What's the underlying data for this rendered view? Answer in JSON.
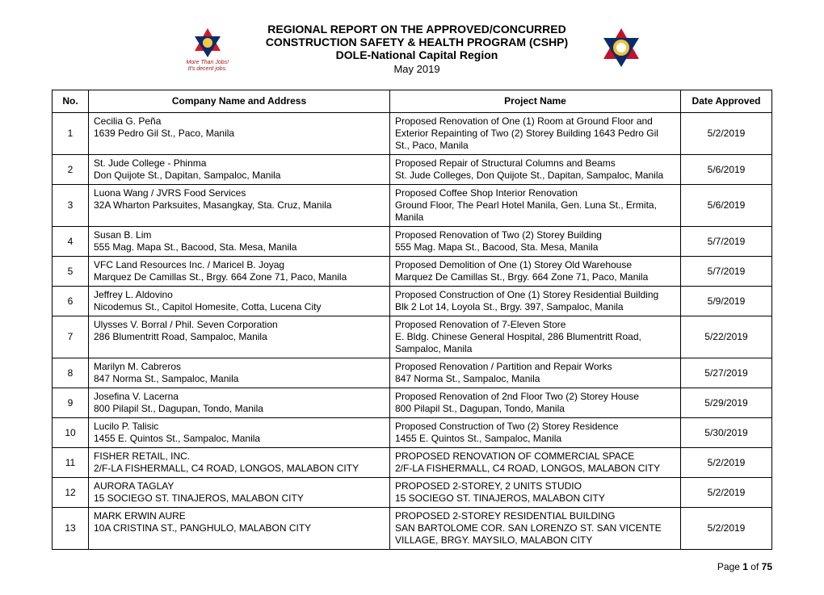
{
  "header": {
    "title1": "REGIONAL REPORT ON THE APPROVED/CONCURRED",
    "title2": "CONSTRUCTION SAFETY & HEALTH PROGRAM (CSHP)",
    "title3": "DOLE-National Capital Region",
    "date": "May 2019",
    "left_logo": {
      "top_color": "#d11a2a",
      "bottom_color": "#0b2c6b",
      "accent": "#f6c945",
      "script1": "More Than Jobs!",
      "script2": "It's decent jobs."
    },
    "right_logo": {
      "red": "#c1132a",
      "blue": "#0b2c6b",
      "yellow": "#f3c233",
      "white": "#ffffff"
    }
  },
  "table": {
    "headers": {
      "no": "No.",
      "company": "Company Name and Address",
      "project": "Project Name",
      "date": "Date Approved"
    },
    "rows": [
      {
        "no": "1",
        "company": "Cecilia G. Peña",
        "address": "1639 Pedro Gil St., Paco, Manila",
        "project": "Proposed Renovation of One (1) Room at Ground Floor and Exterior Repainting of Two (2) Storey Building 1643 Pedro Gil St., Paco, Manila",
        "date": "5/2/2019"
      },
      {
        "no": "2",
        "company": "St. Jude College - Phinma",
        "address": "Don Quijote St., Dapitan, Sampaloc, Manila",
        "project": "Proposed Repair of Structural Columns and Beams\nSt. Jude Colleges, Don Quijote St., Dapitan, Sampaloc, Manila",
        "date": "5/6/2019"
      },
      {
        "no": "3",
        "company": "Luona Wang / JVRS Food Services",
        "address": "32A Wharton Parksuites, Masangkay, Sta. Cruz, Manila",
        "project": "Proposed Coffee Shop Interior Renovation\nGround Floor, The Pearl Hotel Manila, Gen. Luna St., Ermita, Manila",
        "date": "5/6/2019"
      },
      {
        "no": "4",
        "company": "Susan B. Lim",
        "address": "555 Mag. Mapa St., Bacood, Sta. Mesa, Manila",
        "project": "Proposed Renovation of Two (2) Storey Building\n555 Mag. Mapa St., Bacood, Sta. Mesa, Manila",
        "date": "5/7/2019"
      },
      {
        "no": "5",
        "company": "VFC Land Resources Inc. / Maricel B. Joyag",
        "address": "Marquez De Camillas St., Brgy. 664 Zone 71, Paco, Manila",
        "project": "Proposed Demolition of One (1) Storey Old Warehouse\nMarquez De Camillas St., Brgy. 664 Zone 71, Paco, Manila",
        "date": "5/7/2019"
      },
      {
        "no": "6",
        "company": "Jeffrey L. Aldovino",
        "address": "Nicodemus St., Capitol Homesite, Cotta, Lucena City",
        "project": "Proposed Construction of One (1) Storey Residential Building\nBlk 2 Lot 14, Loyola St., Brgy. 397, Sampaloc, Manila",
        "date": "5/9/2019"
      },
      {
        "no": "7",
        "company": "Ulysses V. Borral / Phil. Seven Corporation",
        "address": "286 Blumentritt Road, Sampaloc, Manila",
        "project": "Proposed Renovation of 7-Eleven Store\nE. Bldg. Chinese General Hospital, 286 Blumentritt Road, Sampaloc, Manila",
        "date": "5/22/2019"
      },
      {
        "no": "8",
        "company": "Marilyn M. Cabreros",
        "address": "847 Norma St., Sampaloc, Manila",
        "project": "Proposed Renovation / Partition and Repair Works\n847 Norma St., Sampaloc, Manila",
        "date": "5/27/2019"
      },
      {
        "no": "9",
        "company": "Josefina V. Lacerna",
        "address": "800 Pilapil St., Dagupan, Tondo, Manila",
        "project": "Proposed Renovation of 2nd Floor Two (2) Storey House\n800 Pilapil St., Dagupan, Tondo, Manila",
        "date": "5/29/2019"
      },
      {
        "no": "10",
        "company": "Lucilo P. Talisic",
        "address": "1455 E. Quintos St., Sampaloc, Manila",
        "project": "Proposed Construction of Two (2) Storey Residence\n1455 E. Quintos St., Sampaloc, Manila",
        "date": "5/30/2019"
      },
      {
        "no": "11",
        "company": "FISHER RETAIL, INC.",
        "address": "2/F-LA FISHERMALL, C4 ROAD, LONGOS, MALABON CITY",
        "project": "PROPOSED RENOVATION OF COMMERCIAL SPACE\n2/F-LA FISHERMALL, C4 ROAD, LONGOS, MALABON CITY",
        "date": "5/2/2019"
      },
      {
        "no": "12",
        "company": "AURORA TAGLAY",
        "address": "15 SOCIEGO ST. TINAJEROS, MALABON CITY",
        "project": "PROPOSED 2-STOREY, 2 UNITS STUDIO\n15 SOCIEGO ST. TINAJEROS, MALABON CITY",
        "date": "5/2/2019"
      },
      {
        "no": "13",
        "company": "MARK ERWIN AURE",
        "address": "10A CRISTINA ST., PANGHULO, MALABON CITY",
        "project": "PROPOSED 2-STOREY RESIDENTIAL BUILDING\nSAN BARTOLOME COR. SAN LORENZO ST. SAN VICENTE VILLAGE, BRGY. MAYSILO, MALABON CITY",
        "date": "5/2/2019"
      }
    ]
  },
  "footer": {
    "page_label": "Page ",
    "page_current": "1",
    "page_of": " of ",
    "page_total": "75"
  }
}
